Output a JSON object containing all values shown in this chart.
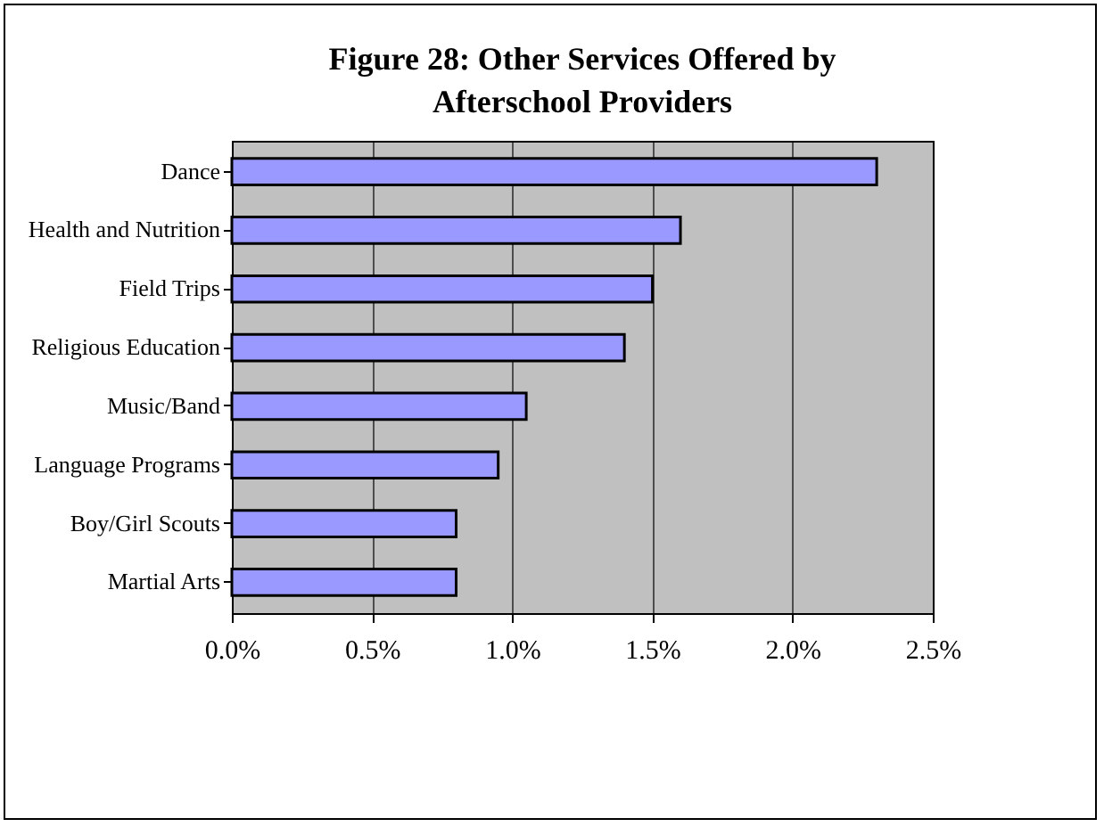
{
  "chart_data": {
    "type": "bar",
    "orientation": "horizontal",
    "title": "Figure 28: Other Services Offered by Afterschool Providers",
    "categories": [
      "Dance",
      "Health and Nutrition",
      "Field Trips",
      "Religious Education",
      "Music/Band",
      "Language Programs",
      "Boy/Girl Scouts",
      "Martial Arts"
    ],
    "values": [
      2.3,
      1.6,
      1.5,
      1.4,
      1.05,
      0.95,
      0.8,
      0.8
    ],
    "color": "#9999ff",
    "xlim": [
      0,
      2.5
    ],
    "xticks": [
      {
        "value": 0,
        "label": "0.0%"
      },
      {
        "value": 0.5,
        "label": "0.5%"
      },
      {
        "value": 1,
        "label": "1.0%"
      },
      {
        "value": 1.5,
        "label": "1.5%"
      },
      {
        "value": 2,
        "label": "2.0%"
      },
      {
        "value": 2.5,
        "label": "2.5%"
      }
    ],
    "grid": "x"
  }
}
